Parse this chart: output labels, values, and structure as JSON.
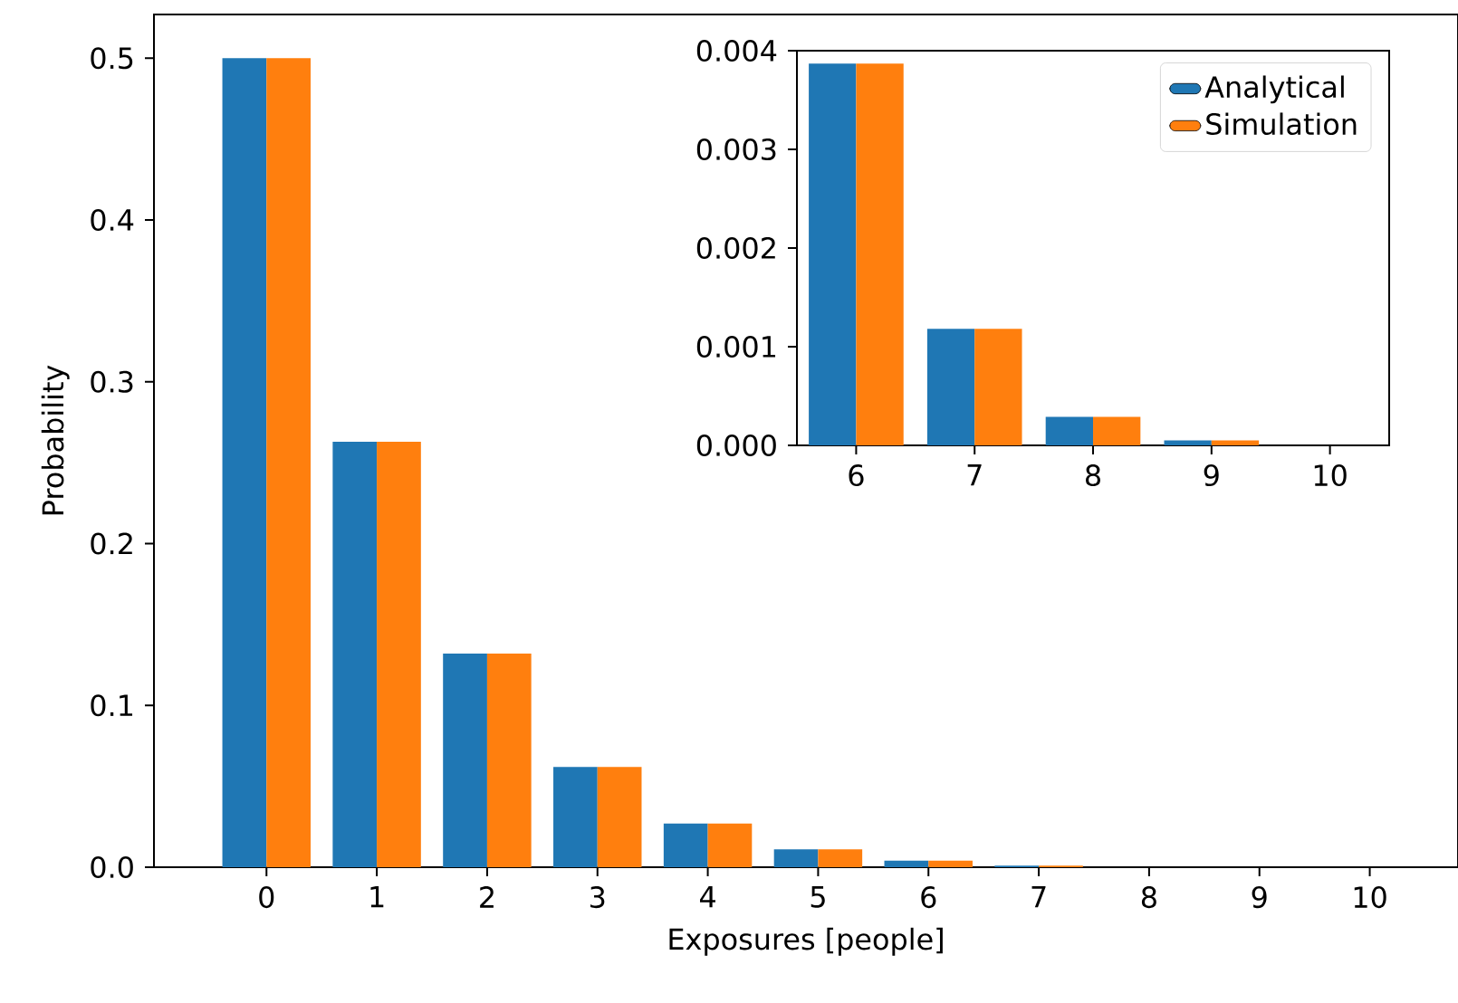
{
  "chart_data": [
    {
      "type": "bar",
      "xlabel": "Exposures [people]",
      "ylabel": "Probability",
      "categories": [
        "0",
        "1",
        "2",
        "3",
        "4",
        "5",
        "6",
        "7",
        "8",
        "9",
        "10"
      ],
      "ylim": [
        0,
        0.527
      ],
      "yticks": [
        {
          "value": 0,
          "label": "0.0"
        },
        {
          "value": 0.1,
          "label": "0.1"
        },
        {
          "value": 0.2,
          "label": "0.2"
        },
        {
          "value": 0.3,
          "label": "0.3"
        },
        {
          "value": 0.4,
          "label": "0.4"
        },
        {
          "value": 0.5,
          "label": "0.5"
        }
      ],
      "series": [
        {
          "color": "#1f77b4",
          "values": [
            0.5,
            0.263,
            0.132,
            0.062,
            0.027,
            0.011,
            0.004,
            0.001,
            0.0,
            0.0,
            0.0
          ]
        },
        {
          "color": "#ff7f0e",
          "values": [
            0.5,
            0.263,
            0.132,
            0.062,
            0.027,
            0.011,
            0.004,
            0.001,
            0.0,
            0.0,
            0.0
          ]
        }
      ],
      "grid": false,
      "legend": false
    },
    {
      "type": "bar",
      "categories": [
        "6",
        "7",
        "8",
        "9",
        "10"
      ],
      "ylim": [
        0,
        0.004
      ],
      "yticks": [
        {
          "value": 0,
          "label": "0.000"
        },
        {
          "value": 0.001,
          "label": "0.001"
        },
        {
          "value": 0.002,
          "label": "0.002"
        },
        {
          "value": 0.003,
          "label": "0.003"
        },
        {
          "value": 0.004,
          "label": "0.004"
        }
      ],
      "series": [
        {
          "name": "Analytical",
          "color": "#1f77b4",
          "values": [
            0.00387,
            0.00118,
            0.00029,
            5e-05,
            0.0
          ]
        },
        {
          "name": "Simulation",
          "color": "#ff7f0e",
          "values": [
            0.00387,
            0.00118,
            0.00029,
            5e-05,
            0.0
          ]
        }
      ],
      "grid": false,
      "legend": "top right"
    }
  ]
}
